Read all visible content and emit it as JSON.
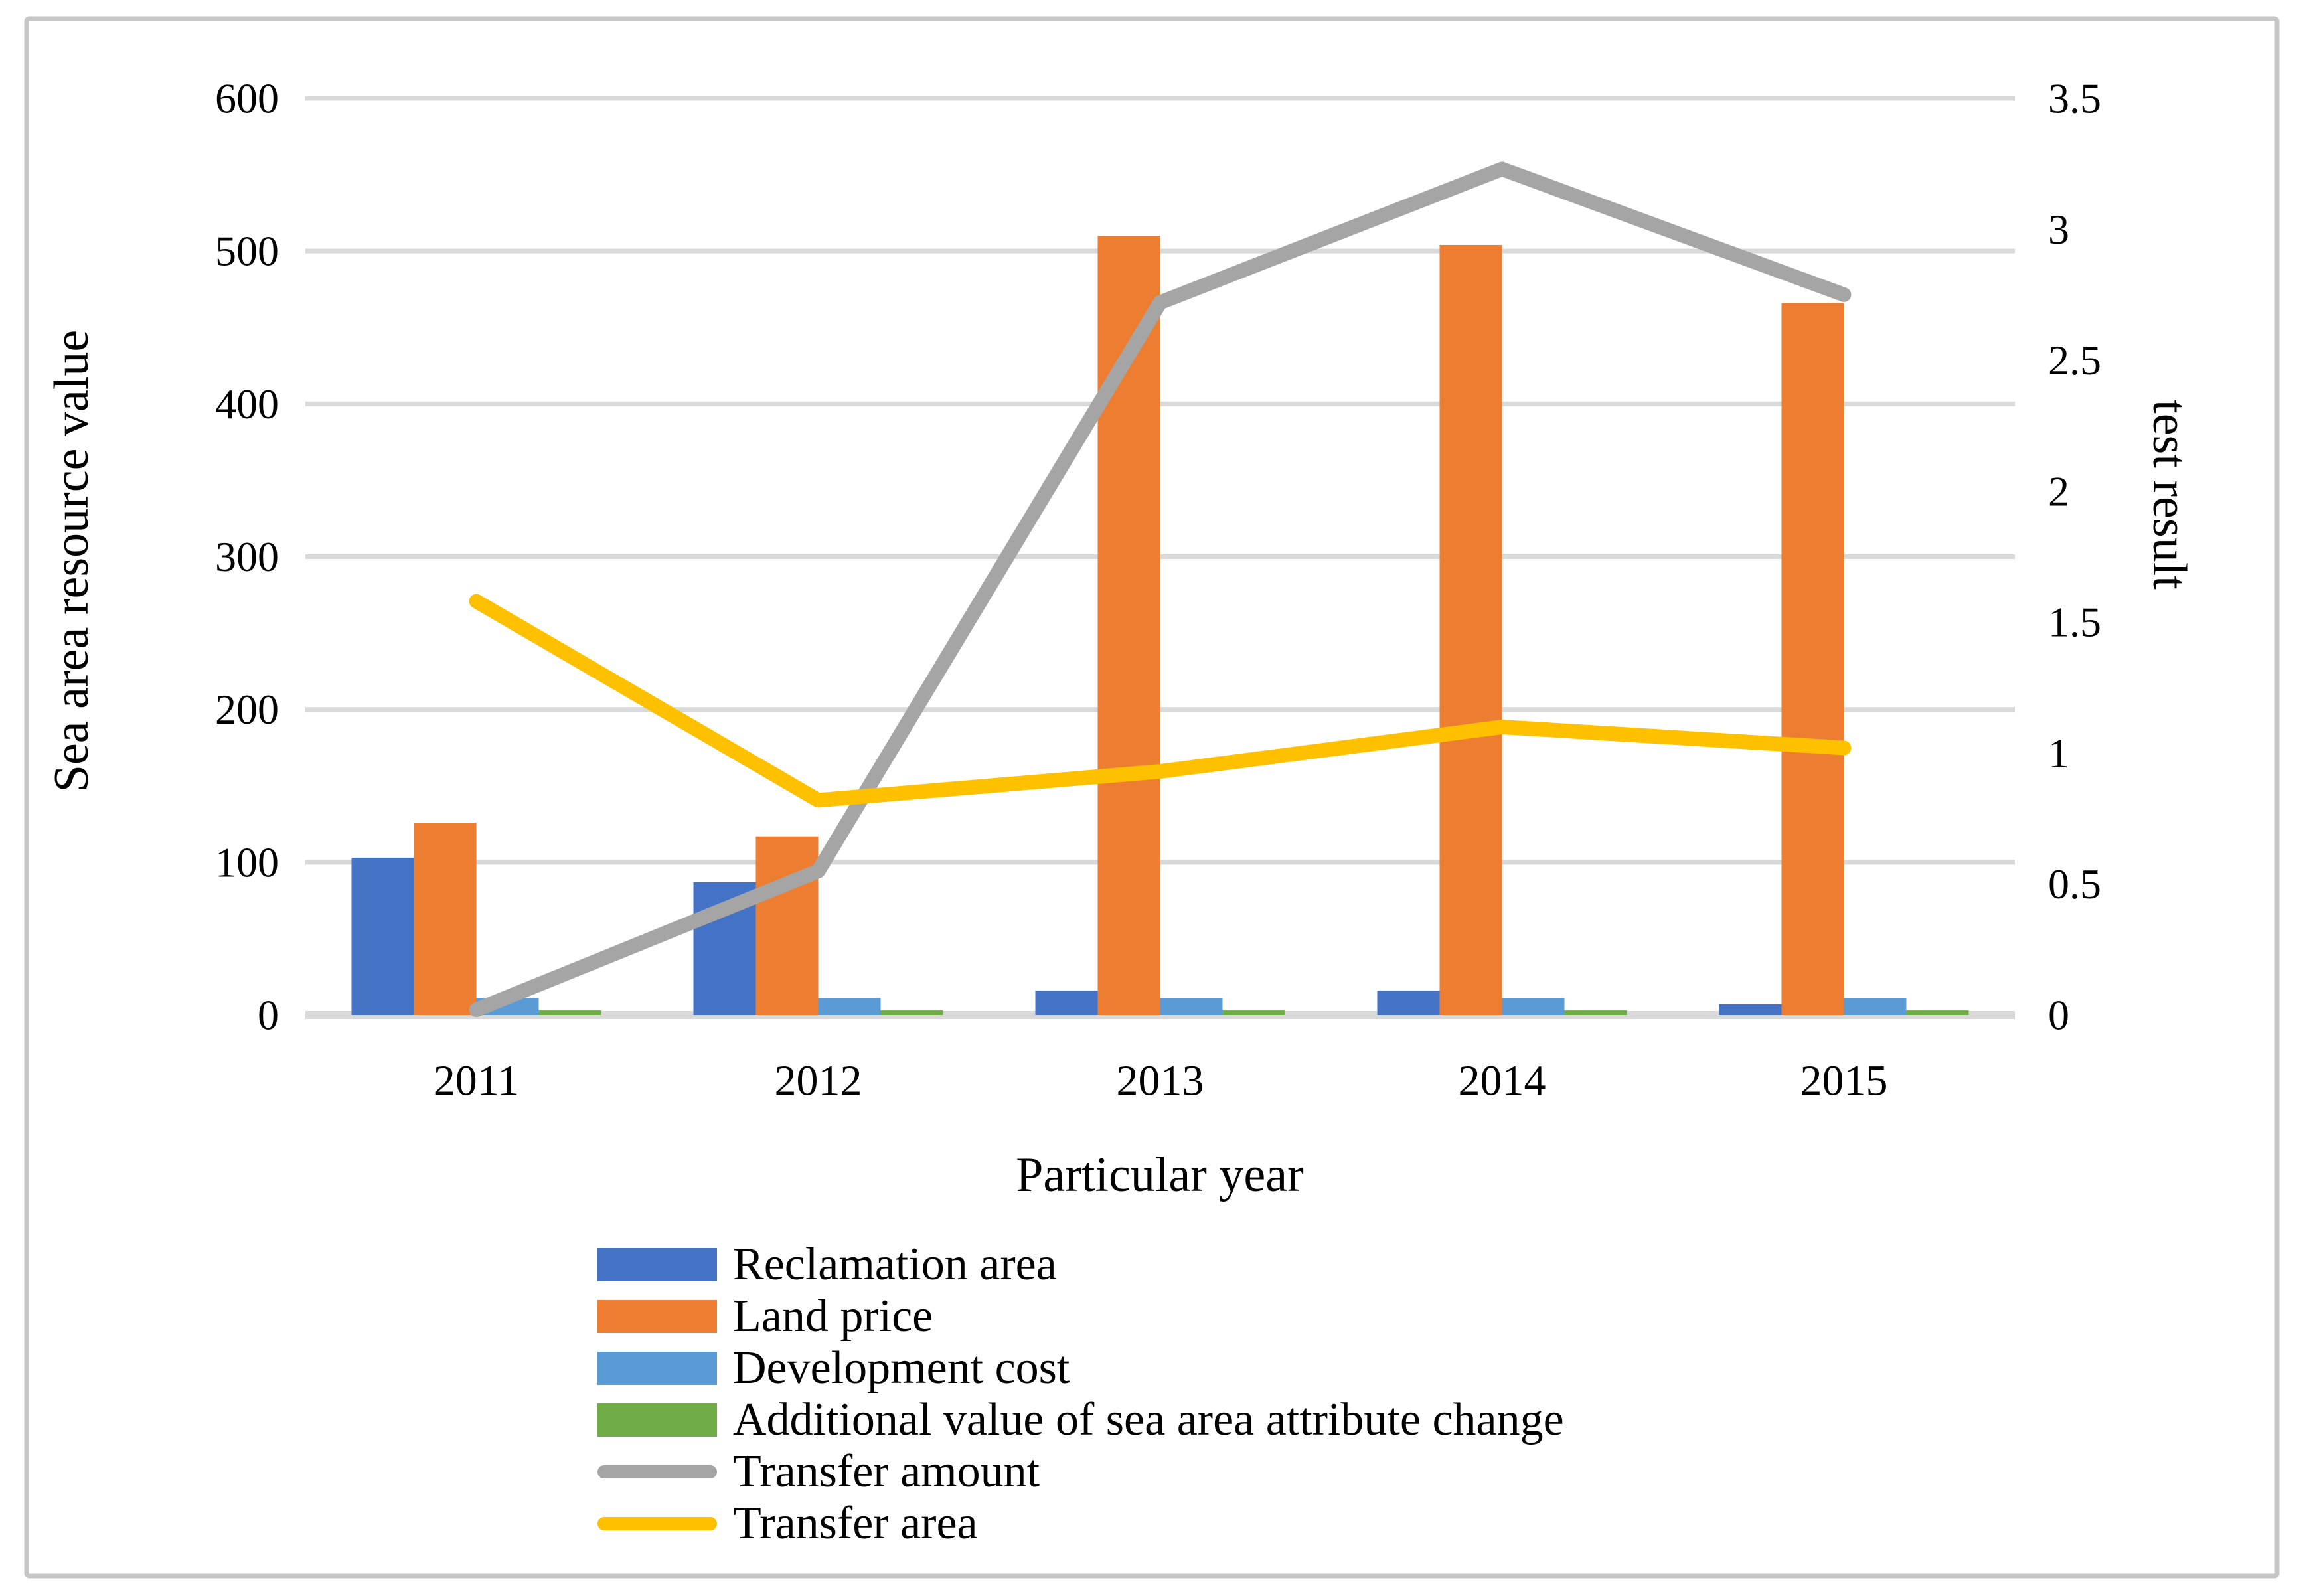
{
  "figure": {
    "background": "#ffffff",
    "border_color": "#c6c6c6"
  },
  "chart_data": {
    "type": "combo-bar-line",
    "categories": [
      "2011",
      "2012",
      "2013",
      "2014",
      "2015"
    ],
    "bar_series": [
      {
        "name": "Reclamation area",
        "color": "#4472C4",
        "values": [
          103,
          87,
          16,
          16,
          7
        ]
      },
      {
        "name": "Land price",
        "color": "#ED7D31",
        "values": [
          126,
          117,
          510,
          504,
          466
        ]
      },
      {
        "name": "Development cost",
        "color": "#5B9BD5",
        "values": [
          11,
          11,
          11,
          11,
          11
        ]
      },
      {
        "name": "Additional value of sea area attribute change",
        "color": "#70AD47",
        "values": [
          3,
          3,
          3,
          3,
          3
        ]
      }
    ],
    "line_series": [
      {
        "name": "Transfer amount",
        "color": "#A5A5A5",
        "values": [
          0.02,
          0.55,
          2.72,
          3.23,
          2.75
        ]
      },
      {
        "name": "Transfer area",
        "color": "#FFC000",
        "values": [
          1.58,
          0.82,
          0.93,
          1.1,
          1.02
        ]
      }
    ],
    "left_axis": {
      "title": "Sea area resource value",
      "min": 0,
      "max": 600,
      "step": 100,
      "tick_labels": [
        "0",
        "100",
        "200",
        "300",
        "400",
        "500",
        "600"
      ]
    },
    "right_axis": {
      "title": "test result",
      "min": 0,
      "max": 3.5,
      "step": 0.5,
      "tick_labels": [
        "0",
        "0.5",
        "1",
        "1.5",
        "2",
        "2.5",
        "3",
        "3.5"
      ]
    },
    "x_axis": {
      "title": "Particular year"
    },
    "grid": true,
    "gridline_color": "#D9D9D9",
    "legend_position": "bottom-left"
  }
}
